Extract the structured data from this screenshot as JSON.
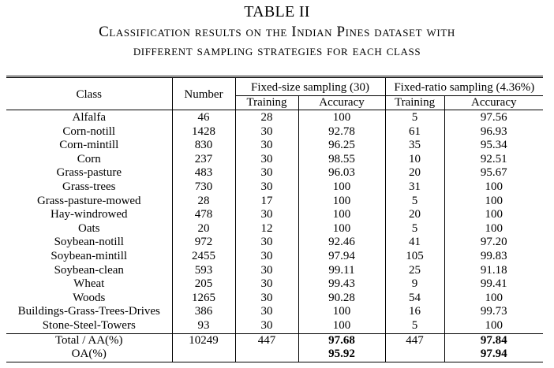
{
  "table_label": "TABLE II",
  "caption": {
    "line1": "Classification results on the Indian Pines dataset with",
    "line2": "different sampling strategies for each class"
  },
  "header": {
    "class": "Class",
    "number": "Number",
    "group_fixed_size": "Fixed-size sampling (30)",
    "group_fixed_ratio": "Fixed-ratio sampling (4.36%)",
    "training": "Training",
    "accuracy": "Accuracy"
  },
  "rows": [
    {
      "class": "Alfalfa",
      "number": "46",
      "fs_training": "28",
      "fs_accuracy": "100",
      "fr_training": "5",
      "fr_accuracy": "97.56"
    },
    {
      "class": "Corn-notill",
      "number": "1428",
      "fs_training": "30",
      "fs_accuracy": "92.78",
      "fr_training": "61",
      "fr_accuracy": "96.93"
    },
    {
      "class": "Corn-mintill",
      "number": "830",
      "fs_training": "30",
      "fs_accuracy": "96.25",
      "fr_training": "35",
      "fr_accuracy": "95.34"
    },
    {
      "class": "Corn",
      "number": "237",
      "fs_training": "30",
      "fs_accuracy": "98.55",
      "fr_training": "10",
      "fr_accuracy": "92.51"
    },
    {
      "class": "Grass-pasture",
      "number": "483",
      "fs_training": "30",
      "fs_accuracy": "96.03",
      "fr_training": "20",
      "fr_accuracy": "95.67"
    },
    {
      "class": "Grass-trees",
      "number": "730",
      "fs_training": "30",
      "fs_accuracy": "100",
      "fr_training": "31",
      "fr_accuracy": "100"
    },
    {
      "class": "Grass-pasture-mowed",
      "number": "28",
      "fs_training": "17",
      "fs_accuracy": "100",
      "fr_training": "5",
      "fr_accuracy": "100"
    },
    {
      "class": "Hay-windrowed",
      "number": "478",
      "fs_training": "30",
      "fs_accuracy": "100",
      "fr_training": "20",
      "fr_accuracy": "100"
    },
    {
      "class": "Oats",
      "number": "20",
      "fs_training": "12",
      "fs_accuracy": "100",
      "fr_training": "5",
      "fr_accuracy": "100"
    },
    {
      "class": "Soybean-notill",
      "number": "972",
      "fs_training": "30",
      "fs_accuracy": "92.46",
      "fr_training": "41",
      "fr_accuracy": "97.20"
    },
    {
      "class": "Soybean-mintill",
      "number": "2455",
      "fs_training": "30",
      "fs_accuracy": "97.94",
      "fr_training": "105",
      "fr_accuracy": "99.83"
    },
    {
      "class": "Soybean-clean",
      "number": "593",
      "fs_training": "30",
      "fs_accuracy": "99.11",
      "fr_training": "25",
      "fr_accuracy": "91.18"
    },
    {
      "class": "Wheat",
      "number": "205",
      "fs_training": "30",
      "fs_accuracy": "99.43",
      "fr_training": "9",
      "fr_accuracy": "99.41"
    },
    {
      "class": "Woods",
      "number": "1265",
      "fs_training": "30",
      "fs_accuracy": "90.28",
      "fr_training": "54",
      "fr_accuracy": "100"
    },
    {
      "class": "Buildings-Grass-Trees-Drives",
      "number": "386",
      "fs_training": "30",
      "fs_accuracy": "100",
      "fr_training": "16",
      "fr_accuracy": "99.73"
    },
    {
      "class": "Stone-Steel-Towers",
      "number": "93",
      "fs_training": "30",
      "fs_accuracy": "100",
      "fr_training": "5",
      "fr_accuracy": "100"
    }
  ],
  "totals": {
    "label": "Total / AA(%)",
    "number": "10249",
    "fs_training": "447",
    "fs_accuracy": "97.68",
    "fr_training": "447",
    "fr_accuracy": "97.84"
  },
  "oa": {
    "label": "OA(%)",
    "fs_accuracy": "95.92",
    "fr_accuracy": "97.94"
  }
}
